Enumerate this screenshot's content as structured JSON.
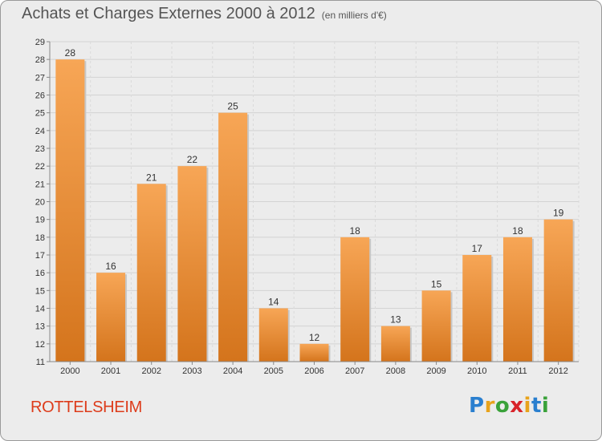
{
  "title": "Achats et Charges Externes 2000 à 2012",
  "subtitle": "(en milliers d'€)",
  "commune": "ROTTELSHEIM",
  "logo": {
    "letters": [
      "P",
      "r",
      "o",
      "x",
      "i",
      "t",
      "i"
    ],
    "colors": [
      "#2a7fcf",
      "#e8a31c",
      "#3aa23a",
      "#d8232a",
      "#e8a31c",
      "#2a7fcf",
      "#3aa23a"
    ]
  },
  "colors": {
    "bar_light": "#f7a656",
    "bar_dark": "#d4741c",
    "commune": "#dd3b1a",
    "background": "#ececec"
  },
  "chart_data": {
    "type": "bar",
    "title": "Achats et Charges Externes 2000 à 2012",
    "subtitle": "(en milliers d'€)",
    "categories": [
      "2000",
      "2001",
      "2002",
      "2003",
      "2004",
      "2005",
      "2006",
      "2007",
      "2008",
      "2009",
      "2010",
      "2011",
      "2012"
    ],
    "values": [
      28,
      16,
      21,
      22,
      25,
      14,
      12,
      18,
      13,
      15,
      17,
      18,
      19
    ],
    "ylim": [
      11,
      29
    ],
    "yticks": [
      11,
      12,
      13,
      14,
      15,
      16,
      17,
      18,
      19,
      20,
      21,
      22,
      23,
      24,
      25,
      26,
      27,
      28,
      29
    ],
    "grid": true,
    "xlabel": "",
    "ylabel": ""
  }
}
